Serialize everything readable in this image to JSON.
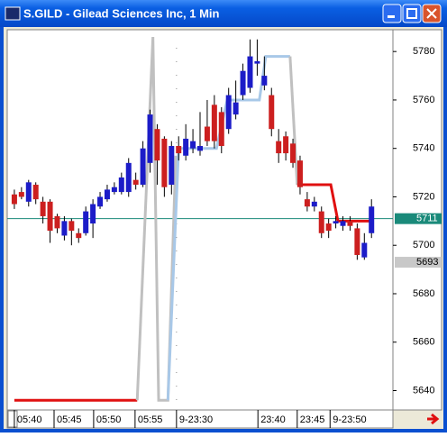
{
  "window_title": "S.GILD - Gilead Sciences Inc, 1 Min",
  "chart_data": {
    "type": "candlestick",
    "up_color": "#1c1cc8",
    "down_color": "#cc1f1f",
    "open": [
      5721,
      5722,
      5718,
      5725,
      5718,
      5718,
      5712,
      5704,
      5710,
      5705,
      5705,
      5709,
      5716,
      5719,
      5722,
      5722,
      5722,
      5727,
      5725,
      5734,
      5748,
      5744,
      5725,
      5741,
      5737,
      5740,
      5739,
      5749,
      5758,
      5755,
      5748,
      5754,
      5762,
      5765,
      5775,
      5766,
      5762,
      5743,
      5745,
      5742,
      5735,
      5719,
      5716,
      5714,
      5709,
      5709,
      5708,
      5710,
      5707,
      5695,
      5705
    ],
    "high": [
      5723,
      5724,
      5727,
      5726,
      5720,
      5719,
      5713,
      5712,
      5711,
      5707,
      5716,
      5719,
      5722,
      5725,
      5726,
      5730,
      5736,
      5730,
      5743,
      5756,
      5750,
      5745,
      5743,
      5745,
      5750,
      5748,
      5755,
      5760,
      5762,
      5757,
      5765,
      5768,
      5775,
      5785,
      5785,
      5778,
      5765,
      5748,
      5747,
      5744,
      5737,
      5722,
      5720,
      5716,
      5711,
      5712,
      5712,
      5712,
      5709,
      5705,
      5719
    ],
    "low": [
      5715,
      5719,
      5716,
      5717,
      5709,
      5701,
      5705,
      5702,
      5700,
      5701,
      5704,
      5703,
      5715,
      5718,
      5721,
      5721,
      5720,
      5723,
      5724,
      5730,
      5725,
      5720,
      5721,
      5735,
      5735,
      5738,
      5737,
      5741,
      5740,
      5738,
      5746,
      5752,
      5760,
      5763,
      5770,
      5764,
      5745,
      5734,
      5735,
      5732,
      5721,
      5714,
      5714,
      5703,
      5703,
      5707,
      5706,
      5706,
      5694,
      5694,
      5703
    ],
    "close": [
      5717,
      5720,
      5726,
      5719,
      5712,
      5706,
      5707,
      5710,
      5706,
      5703,
      5714,
      5717,
      5720,
      5723,
      5724,
      5728,
      5734,
      5725,
      5740,
      5754,
      5735,
      5724,
      5741,
      5738,
      5744,
      5743,
      5741,
      5743,
      5743,
      5741,
      5762,
      5759,
      5772,
      5778,
      5776,
      5770,
      5748,
      5738,
      5738,
      5734,
      5724,
      5716,
      5718,
      5705,
      5706,
      5710,
      5710,
      5708,
      5696,
      5701,
      5716
    ],
    "lines": [
      {
        "color": "#e01010",
        "x": [
          0,
          17.2
        ],
        "values": [
          5636,
          5636
        ]
      },
      {
        "color": "#c0c0c0",
        "x": [
          17.2,
          19.4,
          20.2,
          21.5,
          22.6
        ],
        "values": [
          5636,
          5786,
          5636,
          5636,
          5737
        ]
      },
      {
        "color": "#a8c8e8",
        "x": [
          21.5,
          23,
          28.3,
          29.8,
          34.3,
          35.2,
          38.6
        ],
        "values": [
          5636,
          5740,
          5740,
          5760,
          5760,
          5778,
          5778
        ]
      },
      {
        "color": "#c0c0c0",
        "x": [
          38.6,
          39.6
        ],
        "values": [
          5778,
          5725
        ]
      },
      {
        "color": "#e01010",
        "x": [
          39.6,
          44.3,
          45.3,
          49.7
        ],
        "values": [
          5725,
          5725,
          5710,
          5710
        ]
      }
    ],
    "price_markers": [
      {
        "value": 5711,
        "color": "#1a8a7a",
        "line": true
      },
      {
        "value": 5693,
        "color": "#c8c8c8",
        "line": false
      }
    ],
    "ylim": [
      5632,
      5789
    ],
    "yticks": [
      5640,
      5660,
      5680,
      5700,
      5720,
      5740,
      5760,
      5780
    ],
    "xlim": [
      -1,
      53
    ],
    "xticks": [
      {
        "value": 0,
        "label": "05:40"
      },
      {
        "value": 5.56,
        "label": "05:45"
      },
      {
        "value": 11.1,
        "label": "05:50"
      },
      {
        "value": 16.9,
        "label": "05:55"
      },
      {
        "value": 22.7,
        "label": "9-23:30"
      },
      {
        "value": 34.1,
        "label": "23:40"
      },
      {
        "value": 39.6,
        "label": "23:45"
      },
      {
        "value": 44.2,
        "label": "9-23:50"
      }
    ],
    "session_break": 22.7
  }
}
